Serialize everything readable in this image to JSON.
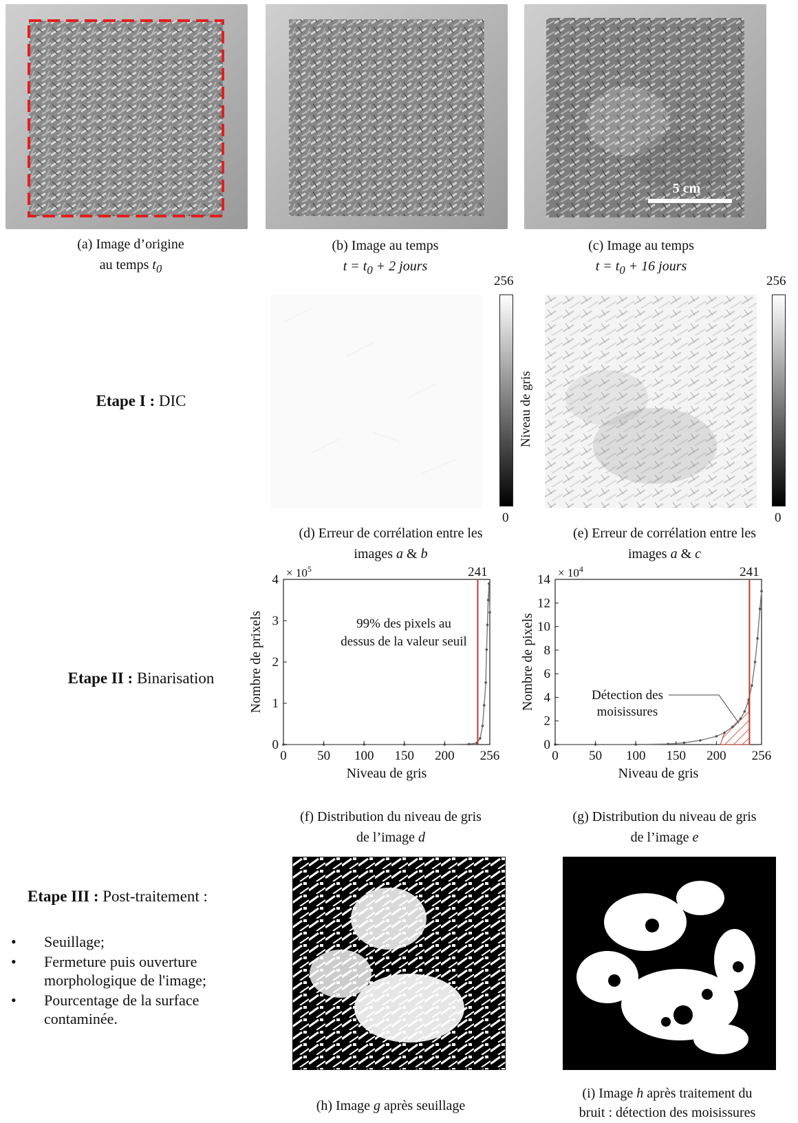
{
  "photos": {
    "a": {
      "caption_line1": "(a) Image d’origine",
      "caption_line2_prefix": "au temps ",
      "caption_line2_var": "t",
      "caption_line2_sub": "0"
    },
    "b": {
      "caption_line1": "(b) Image au temps",
      "caption_line2": "t = t",
      "caption_line2_sub": "0",
      "caption_line2_rest": " + 2 jours"
    },
    "c": {
      "caption_line1": "(c) Image au temps",
      "caption_line2": "t = t",
      "caption_line2_sub": "0",
      "caption_line2_rest": " + 16 jours",
      "scale_label": "5 cm"
    }
  },
  "stages": {
    "dic": {
      "bold": "Etape I :",
      "rest": " DIC"
    },
    "binarisation": {
      "bold": "Etape II :",
      "rest": " Binarisation"
    },
    "post": {
      "bold": "Etape  III :",
      "rest": " Post-traitement :"
    }
  },
  "post_items": [
    "Seuillage;",
    "Fermeture puis ouverture morphologique de l'image;",
    "Pourcentage de la surface contaminée."
  ],
  "bullet_glyph": "•",
  "correlation": {
    "d": {
      "caption_line1": "(d) Erreur de corrélation entre les",
      "caption_line2_prefix": "images ",
      "caption_a": "a",
      "caption_amp": " & ",
      "caption_b": "b",
      "cbar_max": "256",
      "cbar_min": "0",
      "cbar_label": "Niveau de gris"
    },
    "e": {
      "caption_line1": "(e) Erreur de corrélation entre les",
      "caption_line2_prefix": "images ",
      "caption_a": "a",
      "caption_amp": " & ",
      "caption_b": "c",
      "cbar_max": "256",
      "cbar_min": "0",
      "cbar_label": "Niveau de gris"
    }
  },
  "histograms": {
    "f": {
      "caption_line1": "(f) Distribution du niveau de gris",
      "caption_line2_prefix": "de l’image ",
      "caption_var": "d"
    },
    "g": {
      "caption_line1": "(g) Distribution du niveau de gris",
      "caption_line2_prefix": "de l’image ",
      "caption_var": "e"
    }
  },
  "binary": {
    "h": {
      "caption_prefix": "(h) Image ",
      "caption_var": "g",
      "caption_rest": " après seuillage"
    },
    "i": {
      "caption_prefix": "(i) Image ",
      "caption_var": "h",
      "caption_rest": " après traitement du",
      "caption_line2": "bruit : détection des moisissures"
    }
  },
  "colors": {
    "roi_dash": "#e02020",
    "threshold_line": "#c0392b",
    "curve": "#777777"
  },
  "chart_data": [
    {
      "type": "line",
      "panel": "f",
      "xlabel": "Niveau de gris",
      "ylabel": "Nombre de prixels",
      "exponent_label": "× 10",
      "exponent_power": "5",
      "xlim": [
        0,
        256
      ],
      "ylim": [
        0,
        4
      ],
      "xticks": [
        0,
        50,
        100,
        150,
        200,
        256
      ],
      "yticks": [
        0,
        1,
        2,
        3,
        4
      ],
      "threshold": 241,
      "threshold_label": "241",
      "annotation_line1": "99% des pixels au",
      "annotation_line2": "dessus de la valeur seuil",
      "x": [
        0,
        50,
        100,
        150,
        200,
        230,
        240,
        244,
        247,
        249,
        251,
        252,
        253,
        254,
        255,
        256
      ],
      "y": [
        0,
        0,
        0,
        0,
        0,
        0.01,
        0.04,
        0.15,
        0.45,
        0.95,
        1.5,
        2.3,
        2.9,
        3.5,
        3.9,
        3.2
      ]
    },
    {
      "type": "line",
      "panel": "g",
      "xlabel": "Niveau de gris",
      "ylabel": "Nombre de pixels",
      "exponent_label": "× 10",
      "exponent_power": "4",
      "xlim": [
        0,
        256
      ],
      "ylim": [
        0,
        14
      ],
      "xticks": [
        0,
        50,
        100,
        150,
        200,
        256
      ],
      "yticks": [
        0,
        2,
        4,
        6,
        8,
        10,
        12,
        14
      ],
      "threshold": 241,
      "threshold_label": "241",
      "annotation_line1": "Détection des",
      "annotation_line2": "moisissures",
      "shaded_range": [
        205,
        241
      ],
      "x": [
        0,
        50,
        100,
        140,
        160,
        180,
        200,
        210,
        220,
        230,
        235,
        240,
        244,
        248,
        251,
        254,
        256
      ],
      "y": [
        0,
        0,
        0,
        0.05,
        0.15,
        0.35,
        0.7,
        1.0,
        1.5,
        2.2,
        2.8,
        3.8,
        5.0,
        7.0,
        9.0,
        11.5,
        13
      ]
    }
  ]
}
